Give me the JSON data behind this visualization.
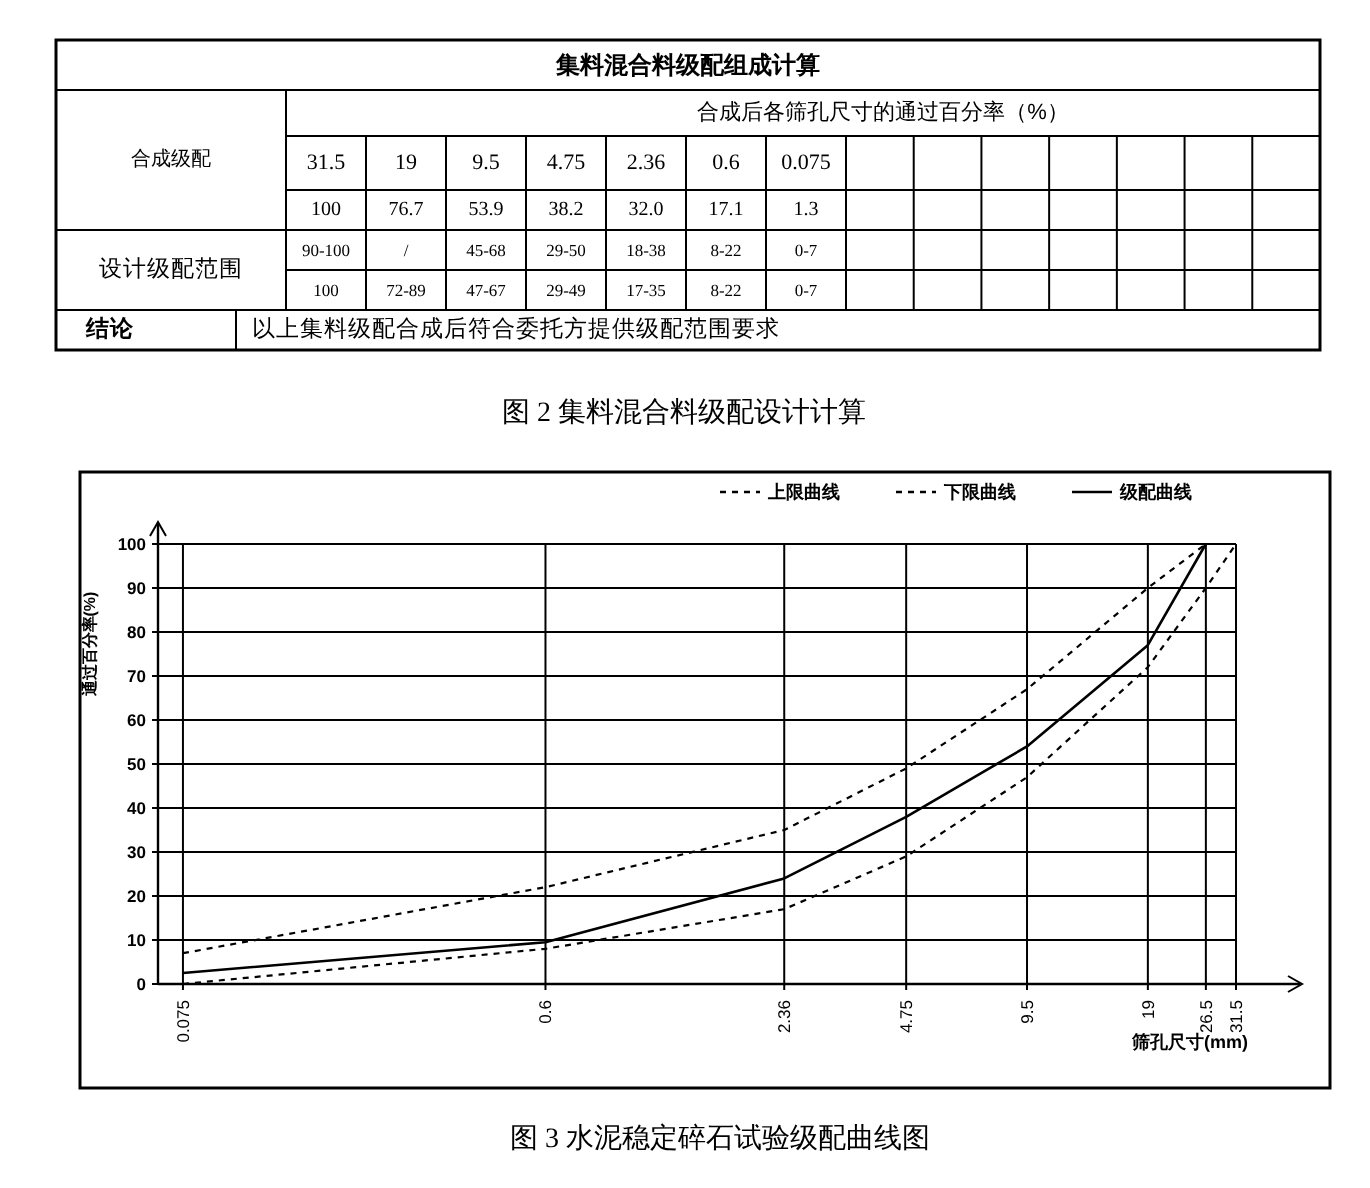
{
  "chart_data": [
    {
      "type": "other",
      "title": "集料混合料级配组成计算",
      "subtitle": "合成后各筛孔尺寸的通过百分率（%）",
      "categories": [
        "31.5",
        "19",
        "9.5",
        "4.75",
        "2.36",
        "0.6",
        "0.075",
        null,
        null,
        null,
        null,
        null,
        null,
        null
      ],
      "y_categories": [
        "合成级配",
        "设计级配范围",
        "结论"
      ],
      "cell_labels": [
        [
          "100",
          "76.7",
          "53.9",
          "38.2",
          "32.0",
          "17.1",
          "1.3",
          null,
          null,
          null,
          null,
          null,
          null,
          null
        ],
        [
          "90-100",
          "/",
          "45-68",
          "29-50",
          "18-38",
          "8-22",
          "0-7",
          null,
          null,
          null,
          null,
          null,
          null,
          null
        ],
        [
          "100",
          "72-89",
          "47-67",
          "29-49",
          "17-35",
          "8-22",
          "0-7",
          null,
          null,
          null,
          null,
          null,
          null,
          null
        ]
      ],
      "annotations": [
        "以上集料级配合成后符合委托方提供级配范围要求",
        "图 2 集料混合料级配设计计算"
      ]
    },
    {
      "type": "line",
      "title": "图 3 水泥稳定碎石试验级配曲线图",
      "xlabel": "筛孔尺寸(mm)",
      "ylabel": "通过百分率(%)",
      "log": "x",
      "x": [
        0.075,
        0.6,
        2.36,
        4.75,
        9.5,
        19,
        26.5,
        31.5
      ],
      "xlim": [
        0.065,
        31.5
      ],
      "xticks": [
        0.075,
        0.6,
        2.36,
        4.75,
        9.5,
        19,
        26.5,
        31.5
      ],
      "ylim": [
        0,
        100
      ],
      "yticks": [
        0,
        10,
        20,
        30,
        40,
        50,
        60,
        70,
        80,
        90,
        100
      ],
      "grid": true,
      "legend": "top right",
      "marker": "none",
      "series": [
        {
          "name": "上限曲线",
          "color": "#000000",
          "line_style": "dashed",
          "values": [
            7,
            22,
            35,
            49,
            67,
            90,
            100,
            null
          ]
        },
        {
          "name": "下限曲线",
          "color": "#000000",
          "line_style": "dashed",
          "values": [
            0,
            8,
            17,
            29,
            47,
            72,
            90,
            100
          ]
        },
        {
          "name": "级配曲线",
          "color": "#000000",
          "line_style": "solid",
          "values": [
            2.5,
            9.5,
            24,
            38,
            54,
            77,
            100,
            null
          ]
        }
      ]
    }
  ]
}
